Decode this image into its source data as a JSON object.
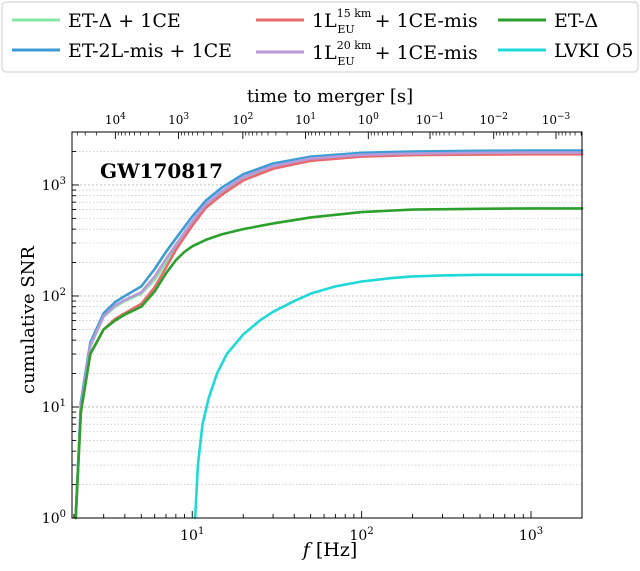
{
  "chart_data": {
    "type": "line",
    "title": "GW170817",
    "xlabel": "f [Hz]",
    "ylabel": "cumulative SNR",
    "top_axis_label": "time to merger [s]",
    "x_scale": "log",
    "y_scale": "log",
    "xlim": [
      1.95,
      2000
    ],
    "ylim": [
      1,
      3000
    ],
    "grid": "horizontal minor dotted",
    "legend_position": "top (outside)",
    "x_tick_labels": [
      "10^1",
      "10^2",
      "10^3"
    ],
    "y_tick_labels": [
      "10^0",
      "10^1",
      "10^2",
      "10^3"
    ],
    "top_tick_labels": [
      "10^4",
      "10^3",
      "10^2",
      "10^1",
      "10^0",
      "10^-1",
      "10^-2",
      "10^-3"
    ],
    "top_tick_fractions": [
      0.085,
      0.209,
      0.335,
      0.458,
      0.581,
      0.702,
      0.827,
      0.949
    ],
    "series": [
      {
        "name": "ET-Δ + 1CE",
        "color": "#86e6a5",
        "x": [
          2.05,
          2.2,
          2.5,
          3,
          3.5,
          4,
          5,
          6,
          7,
          8,
          10,
          12,
          15,
          20,
          30,
          50,
          100,
          200,
          500,
          1000,
          2000
        ],
        "y": [
          1,
          10,
          35,
          65,
          80,
          90,
          105,
          140,
          200,
          280,
          450,
          650,
          850,
          1150,
          1450,
          1700,
          1850,
          1900,
          1930,
          1940,
          1940
        ]
      },
      {
        "name": "ET-2L-mis + 1CE",
        "color": "#3b9cd6",
        "x": [
          2.05,
          2.2,
          2.5,
          3,
          3.5,
          4,
          5,
          6,
          7,
          8,
          10,
          12,
          15,
          20,
          30,
          50,
          100,
          200,
          500,
          1000,
          2000
        ],
        "y": [
          1,
          11,
          38,
          70,
          88,
          100,
          122,
          175,
          250,
          330,
          520,
          720,
          950,
          1250,
          1560,
          1800,
          1950,
          2000,
          2030,
          2040,
          2040
        ]
      },
      {
        "name": "1L_EU^15km + 1CE-mis",
        "color": "#e86a6e",
        "x": [
          2.05,
          2.2,
          2.5,
          3,
          3.5,
          4,
          5,
          6,
          7,
          8,
          10,
          12,
          15,
          20,
          30,
          50,
          100,
          200,
          500,
          1000,
          2000
        ],
        "y": [
          1,
          9,
          30,
          50,
          62,
          70,
          85,
          120,
          180,
          260,
          430,
          620,
          820,
          1100,
          1400,
          1650,
          1800,
          1860,
          1880,
          1890,
          1890
        ]
      },
      {
        "name": "1L_EU^20km + 1CE-mis",
        "color": "#b99ad8",
        "x": [
          2.05,
          2.2,
          2.5,
          3,
          3.5,
          4,
          5,
          6,
          7,
          8,
          10,
          12,
          15,
          20,
          30,
          50,
          100,
          200,
          500,
          1000,
          2000
        ],
        "y": [
          1,
          10,
          36,
          66,
          82,
          92,
          108,
          150,
          215,
          290,
          470,
          670,
          880,
          1180,
          1480,
          1730,
          1870,
          1920,
          1950,
          1960,
          1960
        ]
      },
      {
        "name": "ET-Δ",
        "color": "#2ca02c",
        "x": [
          2.05,
          2.2,
          2.5,
          3,
          3.5,
          4,
          5,
          6,
          7,
          8,
          9,
          10,
          12,
          15,
          20,
          30,
          50,
          100,
          200,
          500,
          1000,
          2000
        ],
        "y": [
          1,
          9,
          30,
          50,
          60,
          68,
          80,
          110,
          160,
          210,
          250,
          280,
          320,
          360,
          400,
          450,
          510,
          570,
          600,
          610,
          615,
          615
        ]
      },
      {
        "name": "LVKI O5",
        "color": "#1fd8d8",
        "x": [
          10.4,
          10.8,
          11.5,
          12.5,
          14,
          16,
          20,
          25,
          30,
          40,
          50,
          70,
          100,
          150,
          200,
          300,
          500,
          1000,
          2000
        ],
        "y": [
          1,
          3,
          7,
          12,
          20,
          30,
          45,
          60,
          72,
          90,
          105,
          122,
          135,
          145,
          150,
          153,
          155,
          155,
          155
        ]
      }
    ]
  }
}
